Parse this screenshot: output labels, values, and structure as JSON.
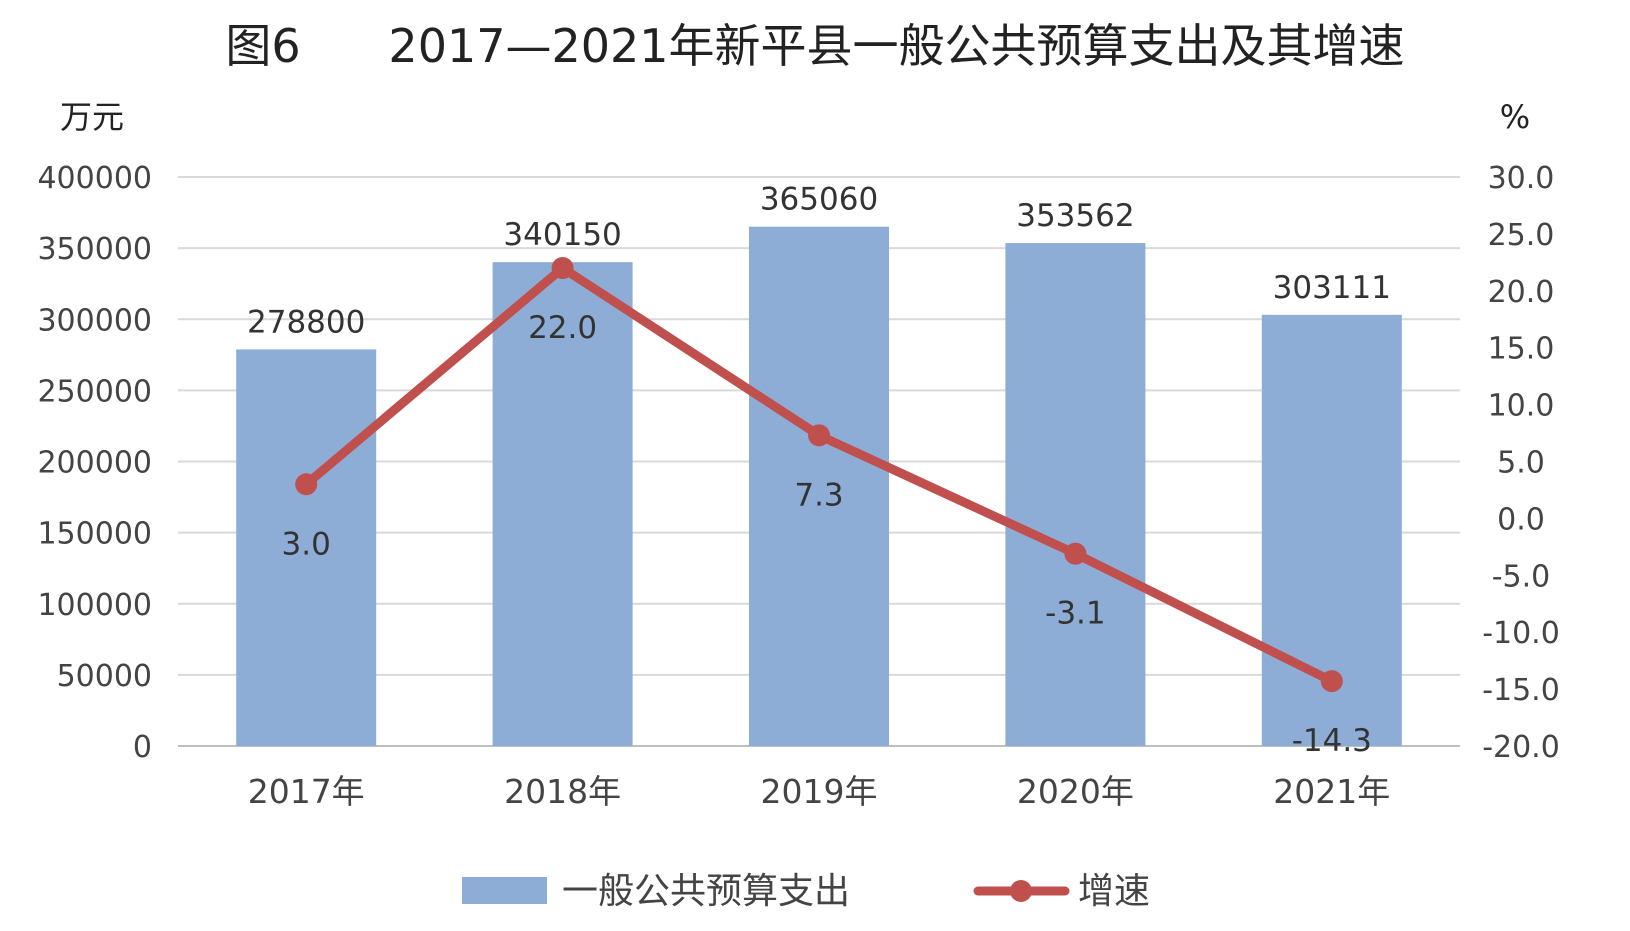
{
  "chart_data": {
    "type": "bar",
    "title": "图6      2017—2021年新平县一般公共预算支出及其增速",
    "left_axis_unit": "万元",
    "right_axis_unit": "%",
    "categories": [
      "2017年",
      "2018年",
      "2019年",
      "2020年",
      "2021年"
    ],
    "y_left": {
      "min": 0,
      "max": 400000,
      "ticks": [
        "0",
        "50000",
        "100000",
        "150000",
        "200000",
        "250000",
        "300000",
        "350000",
        "400000"
      ]
    },
    "y_right": {
      "min": -20,
      "max": 30,
      "ticks": [
        "-20.0",
        "-15.0",
        "-10.0",
        "-5.0",
        "0.0",
        "5.0",
        "10.0",
        "15.0",
        "20.0",
        "25.0",
        "30.0"
      ]
    },
    "grid": true,
    "legend_position": "bottom",
    "series": [
      {
        "name": "一般公共预算支出",
        "type": "bar",
        "axis": "left",
        "color": "#8eadd6",
        "values": [
          278800,
          340150,
          365060,
          353562,
          303111
        ],
        "labels": [
          "278800",
          "340150",
          "365060",
          "353562",
          "303111"
        ]
      },
      {
        "name": "增速",
        "type": "line",
        "axis": "right",
        "color": "#c0504d",
        "values": [
          3.0,
          22.0,
          7.3,
          -3.1,
          -14.3
        ],
        "labels": [
          "3.0",
          "22.0",
          "7.3",
          "-3.1",
          "-14.3"
        ]
      }
    ]
  }
}
